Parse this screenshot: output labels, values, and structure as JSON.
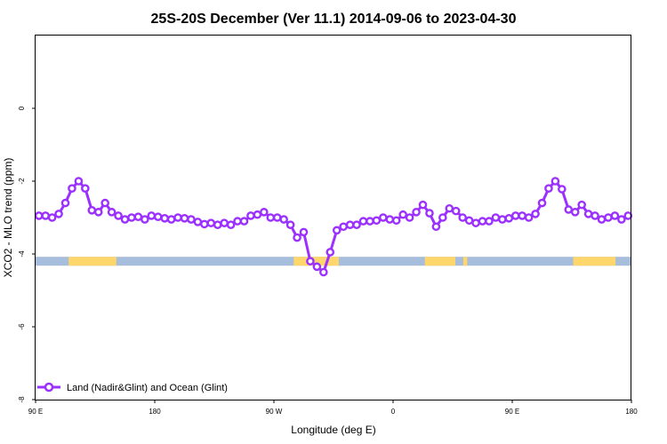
{
  "chart_data": {
    "type": "line",
    "title": "25S-20S December (Ver 11.1)   2014-09-06 to 2023-04-30",
    "xlabel": "Longitude (deg E)",
    "ylabel": "XCO2 - MLO trend (ppm)",
    "xlim": [
      90,
      540
    ],
    "ylim": [
      -8,
      2
    ],
    "grid": false,
    "legend_position": "bottom-left",
    "x_ticks": [
      {
        "value": 90,
        "label": "90 E"
      },
      {
        "value": 180,
        "label": "180"
      },
      {
        "value": 270,
        "label": "90 W"
      },
      {
        "value": 360,
        "label": "0"
      },
      {
        "value": 450,
        "label": "90 E"
      },
      {
        "value": 540,
        "label": "180"
      }
    ],
    "y_ticks": [
      {
        "value": 0,
        "label": "0"
      },
      {
        "value": -2,
        "label": "-2"
      },
      {
        "value": -4,
        "label": "-4"
      },
      {
        "value": -6,
        "label": "-6"
      },
      {
        "value": -8,
        "label": "-8"
      }
    ],
    "series": [
      {
        "name": "Land (Nadir&Glint) and Ocean (Glint)",
        "color": "#9b30ff",
        "x": [
          92.5,
          97.5,
          102.5,
          107.5,
          112.5,
          117.5,
          122.5,
          127.5,
          132.5,
          137.5,
          142.5,
          147.5,
          152.5,
          157.5,
          162.5,
          167.5,
          172.5,
          177.5,
          182.5,
          187.5,
          192.5,
          197.5,
          202.5,
          207.5,
          212.5,
          217.5,
          222.5,
          227.5,
          232.5,
          237.5,
          242.5,
          247.5,
          252.5,
          257.5,
          262.5,
          267.5,
          272.5,
          277.5,
          282.5,
          287.5,
          292.5,
          297.5,
          302.5,
          307.5,
          312.5,
          317.5,
          322.5,
          327.5,
          332.5,
          337.5,
          342.5,
          347.5,
          352.5,
          357.5,
          362.5,
          367.5,
          372.5,
          377.5,
          382.5,
          387.5,
          392.5,
          397.5,
          402.5,
          407.5,
          412.5,
          417.5,
          422.5,
          427.5,
          432.5,
          437.5,
          442.5,
          447.5,
          452.5,
          457.5,
          462.5,
          467.5,
          472.5,
          477.5,
          482.5,
          487.5,
          492.5,
          497.5,
          502.5,
          507.5,
          512.5,
          517.5,
          522.5,
          527.5,
          532.5,
          537.5
        ],
        "y": [
          -2.95,
          -2.95,
          -3.0,
          -2.9,
          -2.6,
          -2.2,
          -2.0,
          -2.2,
          -2.8,
          -2.85,
          -2.6,
          -2.85,
          -2.95,
          -3.05,
          -3.0,
          -2.98,
          -3.05,
          -2.95,
          -2.98,
          -3.02,
          -3.05,
          -3.0,
          -3.02,
          -3.05,
          -3.12,
          -3.18,
          -3.15,
          -3.2,
          -3.15,
          -3.2,
          -3.1,
          -3.1,
          -2.95,
          -2.92,
          -2.85,
          -3.0,
          -3.0,
          -3.05,
          -3.2,
          -3.55,
          -3.4,
          -4.2,
          -4.35,
          -4.5,
          -3.95,
          -3.35,
          -3.25,
          -3.2,
          -3.2,
          -3.1,
          -3.1,
          -3.08,
          -3.0,
          -3.05,
          -3.08,
          -2.92,
          -3.0,
          -2.85,
          -2.65,
          -2.88,
          -3.25,
          -3.0,
          -2.75,
          -2.82,
          -3.0,
          -3.08,
          -3.15,
          -3.1,
          -3.1,
          -3.0,
          -3.05,
          -3.02,
          -2.95,
          -2.95,
          -3.0,
          -2.9,
          -2.6,
          -2.2,
          -2.0,
          -2.22,
          -2.78,
          -2.85,
          -2.65,
          -2.9,
          -2.95,
          -3.05,
          -3.0,
          -2.95,
          -3.05,
          -2.95
        ]
      }
    ],
    "surface_strip": {
      "y": -4.2,
      "ocean_color": "#a6bddb",
      "land_color": "#ffd66b",
      "land_ranges": [
        [
          115,
          151
        ],
        [
          285,
          319
        ],
        [
          384,
          407
        ],
        [
          413,
          416
        ],
        [
          496,
          528
        ]
      ]
    }
  }
}
